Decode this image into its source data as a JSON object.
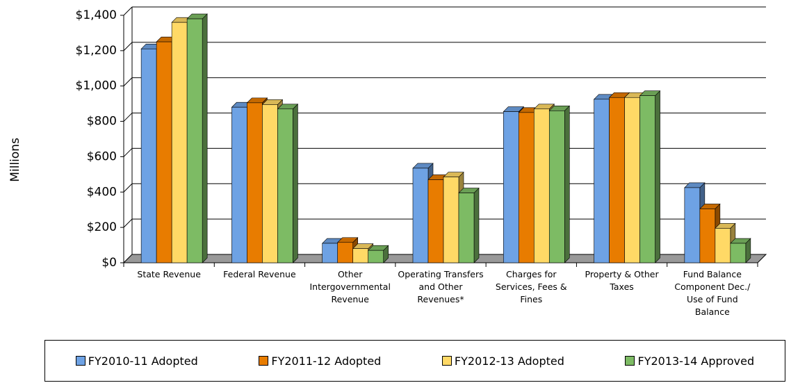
{
  "chart_data": {
    "type": "bar3d",
    "y_label": "Millions",
    "categories": [
      "State Revenue",
      "Federal Revenue",
      "Other Intergovernmental Revenue",
      "Operating Transfers and Other Revenues*",
      "Charges for Services, Fees & Fines",
      "Property & Other Taxes",
      "Fund Balance Component Dec./ Use of Fund Balance"
    ],
    "series": [
      {
        "name": "FY2010-11 Adopted",
        "color": "#6ea2e4",
        "values": [
          1210,
          880,
          110,
          535,
          855,
          925,
          425
        ]
      },
      {
        "name": "FY2011-12 Adopted",
        "color": "#e87c00",
        "values": [
          1250,
          905,
          115,
          470,
          850,
          935,
          305
        ]
      },
      {
        "name": "FY2012-13 Adopted",
        "color": "#ffd966",
        "values": [
          1360,
          895,
          80,
          485,
          870,
          935,
          195
        ]
      },
      {
        "name": "FY2013-14 Approved",
        "color": "#7dbb64",
        "values": [
          1380,
          870,
          70,
          395,
          860,
          945,
          110
        ]
      }
    ],
    "ylim": [
      0,
      1400
    ],
    "yticks": [
      {
        "value": 0,
        "label": "$0"
      },
      {
        "value": 200,
        "label": "$200"
      },
      {
        "value": 400,
        "label": "$400"
      },
      {
        "value": 600,
        "label": "$600"
      },
      {
        "value": 800,
        "label": "$800"
      },
      {
        "value": 1000,
        "label": "$1,000"
      },
      {
        "value": 1200,
        "label": "$1,200"
      },
      {
        "value": 1400,
        "label": "$1,400"
      }
    ],
    "grid": true,
    "legend": "bottom"
  }
}
